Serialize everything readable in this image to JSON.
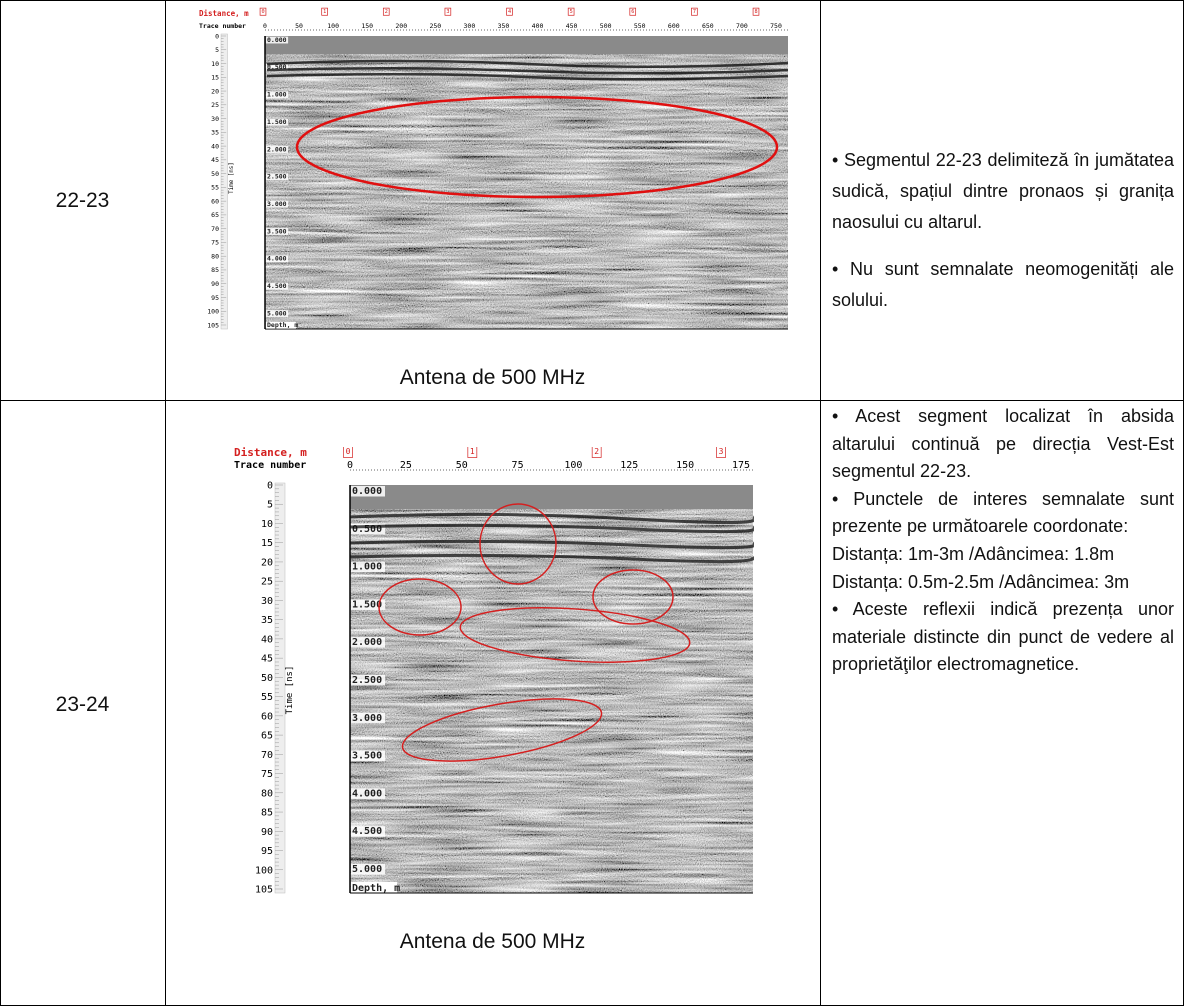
{
  "table": {
    "rows": [
      {
        "segment": "22-23",
        "figure": {
          "distance_label": "Distance, m",
          "trace_label": "Trace number",
          "markers": [
            "0",
            "1",
            "2",
            "3",
            "4",
            "5",
            "6",
            "7",
            "8"
          ],
          "trace_ticks": [
            "0",
            "50",
            "100",
            "150",
            "200",
            "250",
            "300",
            "350",
            "400",
            "450",
            "500",
            "550",
            "600",
            "650",
            "700",
            "750"
          ],
          "time_label": "Time [ns]",
          "time_ticks": [
            "0",
            "5",
            "10",
            "15",
            "20",
            "25",
            "30",
            "35",
            "40",
            "45",
            "50",
            "55",
            "60",
            "65",
            "70",
            "75",
            "80",
            "85",
            "90",
            "95",
            "100",
            "105"
          ],
          "depth_ticks": [
            "0.000",
            "0.500",
            "1.000",
            "1.500",
            "2.000",
            "2.500",
            "3.000",
            "3.500",
            "4.000",
            "4.500",
            "5.000"
          ],
          "depth_label": "Depth, m"
        },
        "caption": "Antena de 500 MHz",
        "notes": [
          "• Segmentul 22-23 delimiteză în jumătatea sudică, spațiul dintre pronaos și granița naosului cu altarul.",
          "•      Nu      sunt      semnalate neomogenități ale solului."
        ]
      },
      {
        "segment": "23-24",
        "figure": {
          "distance_label": "Distance, m",
          "trace_label": "Trace number",
          "markers": [
            "0",
            "1",
            "2",
            "3"
          ],
          "trace_ticks": [
            "0",
            "25",
            "50",
            "75",
            "100",
            "125",
            "150",
            "175"
          ],
          "time_label": "Time [ns]",
          "time_ticks": [
            "0",
            "5",
            "10",
            "15",
            "20",
            "25",
            "30",
            "35",
            "40",
            "45",
            "50",
            "55",
            "60",
            "65",
            "70",
            "75",
            "80",
            "85",
            "90",
            "95",
            "100",
            "105"
          ],
          "depth_ticks": [
            "0.000",
            "0.500",
            "1.000",
            "1.500",
            "2.000",
            "2.500",
            "3.000",
            "3.500",
            "4.000",
            "4.500",
            "5.000"
          ],
          "depth_label": "Depth, m"
        },
        "caption": "Antena de 500 MHz",
        "notes": [
          "• Acest segment localizat în absida altarului continuă pe direcția Vest-Est segmentul 22-23.",
          "•     Punctele de interes semnalate sunt prezente pe următoarele coordonate:",
          "Distanța: 1m-3m /Adâncimea: 1.8m",
          "Distanța: 0.5m-2.5m /Adâncimea: 3m",
          "• Aceste reflexii indică prezența unor materiale distincte din punct de vedere al proprietăţilor electromagnetice."
        ]
      }
    ]
  }
}
